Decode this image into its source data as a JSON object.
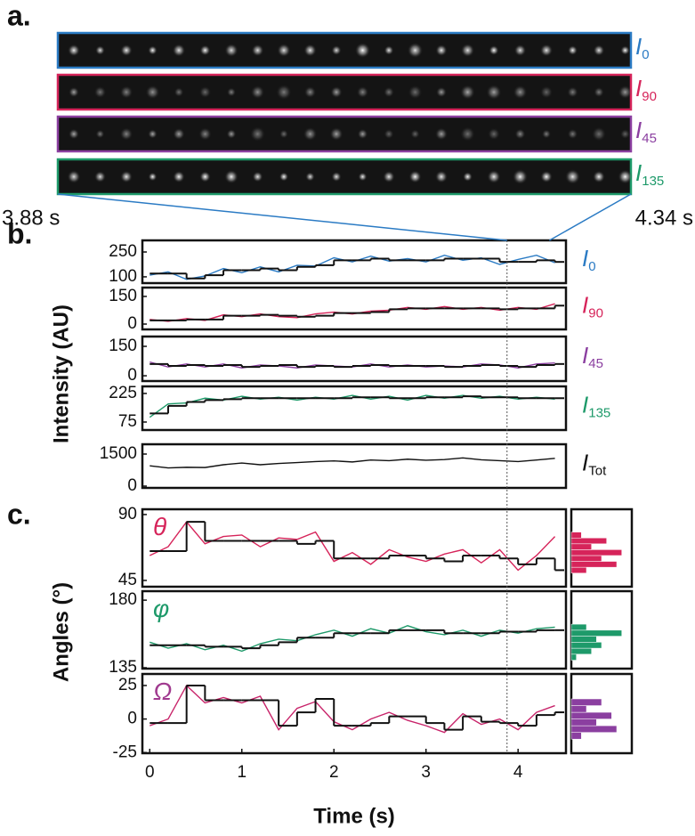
{
  "panel_labels": [
    "a.",
    "b.",
    "c."
  ],
  "intensity_label": "Intensity (AU)",
  "angles_label": "Angles (°)",
  "time_label": "Time (s)",
  "highlight": {
    "start": {
      "value": 3.88,
      "label": "3.88 s"
    },
    "end": {
      "value": 4.34,
      "label": "4.34 s"
    }
  },
  "strips": [
    {
      "label": {
        "main": "I",
        "sub": "0"
      },
      "color": "#2b7bc4"
    },
    {
      "label": {
        "main": "I",
        "sub": "90"
      },
      "color": "#d6245a"
    },
    {
      "label": {
        "main": "I",
        "sub": "45"
      },
      "color": "#8b3fa0"
    },
    {
      "label": {
        "main": "I",
        "sub": "135"
      },
      "color": "#1e9a6a"
    }
  ],
  "chart_data": [
    {
      "type": "line",
      "label": {
        "main": "I",
        "sub": "0"
      },
      "label_color": "#2b7bc4",
      "x": [
        0,
        0.2,
        0.4,
        0.6,
        0.8,
        1,
        1.2,
        1.4,
        1.6,
        1.8,
        2,
        2.2,
        2.4,
        2.6,
        2.8,
        3,
        3.2,
        3.4,
        3.6,
        3.8,
        4,
        4.2,
        4.4
      ],
      "xlim": [
        -0.08,
        4.52
      ],
      "ylim": [
        62,
        320
      ],
      "yticks": [
        100,
        250
      ],
      "series": [
        {
          "color": "#2b7bc4",
          "values": [
            110,
            130,
            85,
            105,
            150,
            125,
            160,
            130,
            170,
            165,
            215,
            190,
            225,
            195,
            210,
            190,
            230,
            200,
            215,
            175,
            205,
            230,
            185
          ]
        },
        {
          "color": "#111111",
          "step": true,
          "values": [
            120,
            120,
            90,
            110,
            140,
            140,
            150,
            140,
            160,
            170,
            200,
            200,
            210,
            200,
            200,
            200,
            210,
            210,
            210,
            190,
            190,
            200,
            190
          ]
        }
      ]
    },
    {
      "type": "line",
      "label": {
        "main": "I",
        "sub": "90"
      },
      "label_color": "#d6245a",
      "x": [
        0,
        0.2,
        0.4,
        0.6,
        0.8,
        1,
        1.2,
        1.4,
        1.6,
        1.8,
        2,
        2.2,
        2.4,
        2.6,
        2.8,
        3,
        3.2,
        3.4,
        3.6,
        3.8,
        4,
        4.2,
        4.4
      ],
      "xlim": [
        -0.08,
        4.52
      ],
      "ylim": [
        -29,
        198
      ],
      "yticks": [
        0,
        150
      ],
      "series": [
        {
          "color": "#d6245a",
          "values": [
            25,
            15,
            30,
            20,
            50,
            40,
            55,
            40,
            35,
            55,
            65,
            55,
            70,
            75,
            90,
            80,
            95,
            80,
            90,
            75,
            90,
            80,
            110
          ]
        },
        {
          "color": "#111111",
          "step": true,
          "values": [
            20,
            20,
            25,
            25,
            45,
            45,
            50,
            45,
            40,
            45,
            60,
            60,
            65,
            80,
            85,
            85,
            85,
            85,
            85,
            80,
            85,
            85,
            100
          ]
        }
      ]
    },
    {
      "type": "line",
      "label": {
        "main": "I",
        "sub": "45"
      },
      "label_color": "#8b3fa0",
      "x": [
        0,
        0.2,
        0.4,
        0.6,
        0.8,
        1,
        1.2,
        1.4,
        1.6,
        1.8,
        2,
        2.2,
        2.4,
        2.6,
        2.8,
        3,
        3.2,
        3.4,
        3.6,
        3.8,
        4,
        4.2,
        4.4
      ],
      "xlim": [
        -0.08,
        4.52
      ],
      "ylim": [
        -27,
        200
      ],
      "yticks": [
        0,
        150
      ],
      "series": [
        {
          "color": "#8b3fa0",
          "values": [
            70,
            45,
            60,
            45,
            60,
            40,
            55,
            50,
            40,
            55,
            50,
            45,
            60,
            45,
            55,
            45,
            50,
            45,
            60,
            55,
            40,
            60,
            65
          ]
        },
        {
          "color": "#111111",
          "step": true,
          "values": [
            60,
            50,
            55,
            50,
            55,
            45,
            50,
            55,
            45,
            50,
            45,
            50,
            55,
            50,
            50,
            50,
            45,
            50,
            55,
            50,
            45,
            55,
            60
          ]
        }
      ]
    },
    {
      "type": "line",
      "label": {
        "main": "I",
        "sub": "135"
      },
      "label_color": "#1e9a6a",
      "x": [
        0,
        0.2,
        0.4,
        0.6,
        0.8,
        1,
        1.2,
        1.4,
        1.6,
        1.8,
        2,
        2.2,
        2.4,
        2.6,
        2.8,
        3,
        3.2,
        3.4,
        3.6,
        3.8,
        4,
        4.2,
        4.4
      ],
      "xlim": [
        -0.08,
        4.52
      ],
      "ylim": [
        33,
        262
      ],
      "yticks": [
        75,
        225
      ],
      "series": [
        {
          "color": "#1e9a6a",
          "values": [
            100,
            170,
            175,
            200,
            190,
            210,
            195,
            205,
            190,
            205,
            195,
            215,
            195,
            210,
            190,
            215,
            200,
            215,
            200,
            210,
            195,
            205,
            195
          ]
        },
        {
          "color": "#111111",
          "step": true,
          "values": [
            120,
            160,
            180,
            190,
            195,
            200,
            200,
            200,
            200,
            200,
            200,
            205,
            205,
            200,
            200,
            205,
            205,
            210,
            205,
            205,
            200,
            200,
            200
          ]
        }
      ]
    },
    {
      "type": "line",
      "label": {
        "main": "I",
        "sub": "Tot"
      },
      "label_color": "#111111",
      "x": [
        0,
        0.2,
        0.4,
        0.6,
        0.8,
        1,
        1.2,
        1.4,
        1.6,
        1.8,
        2,
        2.2,
        2.4,
        2.6,
        2.8,
        3,
        3.2,
        3.4,
        3.6,
        3.8,
        4,
        4.2,
        4.4
      ],
      "xlim": [
        -0.08,
        4.52
      ],
      "ylim": [
        -83,
        1958
      ],
      "yticks": [
        0,
        1500
      ],
      "series": [
        {
          "color": "#111111",
          "values": [
            950,
            850,
            880,
            870,
            1000,
            1080,
            1000,
            1060,
            1100,
            1150,
            1180,
            1130,
            1220,
            1190,
            1260,
            1210,
            1240,
            1320,
            1230,
            1190,
            1150,
            1220,
            1300
          ]
        }
      ]
    },
    {
      "type": "line",
      "label": {
        "main": "θ"
      },
      "label_color": "#d6245a",
      "x": [
        0,
        0.2,
        0.4,
        0.6,
        0.8,
        1,
        1.2,
        1.4,
        1.6,
        1.8,
        2,
        2.2,
        2.4,
        2.6,
        2.8,
        3,
        3.2,
        3.4,
        3.6,
        3.8,
        4,
        4.2,
        4.4
      ],
      "xlim": [
        -0.08,
        4.52
      ],
      "ylim": [
        40.7,
        93.6
      ],
      "yticks": [
        45,
        90
      ],
      "series": [
        {
          "color": "#d6245a",
          "values": [
            62,
            68,
            85,
            70,
            75,
            76,
            68,
            74,
            73,
            78,
            58,
            64,
            56,
            66,
            61,
            58,
            63,
            66,
            57,
            66,
            52,
            62,
            75
          ]
        },
        {
          "color": "#111111",
          "step": true,
          "values": [
            65,
            65,
            85,
            72,
            72,
            72,
            72,
            72,
            70,
            72,
            60,
            60,
            60,
            62,
            62,
            60,
            58,
            62,
            62,
            60,
            56,
            60,
            52
          ]
        }
      ],
      "histogram": {
        "bins": [
          50,
          54,
          58,
          62,
          66,
          70,
          74,
          78
        ],
        "counts": [
          3,
          9,
          6,
          10,
          4,
          7,
          2
        ],
        "color": "#d6245a",
        "xlim": [
          0,
          12
        ]
      }
    },
    {
      "type": "line",
      "label": {
        "main": "φ"
      },
      "label_color": "#1e9a6a",
      "x": [
        0,
        0.2,
        0.4,
        0.6,
        0.8,
        1,
        1.2,
        1.4,
        1.6,
        1.8,
        2,
        2.2,
        2.4,
        2.6,
        2.8,
        3,
        3.2,
        3.4,
        3.6,
        3.8,
        4,
        4.2,
        4.4
      ],
      "xlim": [
        -0.08,
        4.52
      ],
      "ylim": [
        134.4,
        186
      ],
      "yticks": [
        135,
        180
      ],
      "series": [
        {
          "color": "#1e9a6a",
          "values": [
            152,
            148,
            151,
            147,
            150,
            146,
            151,
            154,
            153,
            157,
            160,
            156,
            161,
            158,
            163,
            159,
            157,
            160,
            156,
            160,
            158,
            161,
            162
          ]
        },
        {
          "color": "#111111",
          "step": true,
          "values": [
            150,
            150,
            150,
            149,
            149,
            148,
            150,
            152,
            155,
            155,
            158,
            158,
            158,
            160,
            160,
            160,
            158,
            158,
            158,
            159,
            159,
            160,
            160
          ]
        }
      ],
      "histogram": {
        "bins": [
          140,
          144,
          148,
          152,
          156,
          160,
          164
        ],
        "counts": [
          1,
          4,
          6,
          5,
          10,
          3
        ],
        "color": "#1e9a6a",
        "xlim": [
          0,
          12
        ]
      }
    },
    {
      "type": "line",
      "label": {
        "main": "Ω"
      },
      "label_color": "#a03a8f",
      "x": [
        0,
        0.2,
        0.4,
        0.6,
        0.8,
        1,
        1.2,
        1.4,
        1.6,
        1.8,
        2,
        2.2,
        2.4,
        2.6,
        2.8,
        3,
        3.2,
        3.4,
        3.6,
        3.8,
        4,
        4.2,
        4.4
      ],
      "xlim": [
        -0.08,
        4.52
      ],
      "ylim": [
        -25.5,
        33.6
      ],
      "yticks": [
        -25,
        0,
        25
      ],
      "xticks": [
        0,
        1,
        2,
        3,
        4
      ],
      "series": [
        {
          "color": "#c8246a",
          "values": [
            -5,
            0,
            25,
            12,
            16,
            12,
            17,
            -8,
            8,
            13,
            -2,
            -8,
            0,
            5,
            -1,
            -5,
            -10,
            4,
            -4,
            0,
            -8,
            5,
            10
          ]
        },
        {
          "color": "#111111",
          "step": true,
          "values": [
            -3,
            -3,
            25,
            14,
            14,
            14,
            14,
            -5,
            5,
            15,
            -5,
            -5,
            -3,
            2,
            2,
            -3,
            -8,
            2,
            -2,
            -3,
            -5,
            3,
            5
          ]
        }
      ],
      "histogram": {
        "bins": [
          -15,
          -10,
          -5,
          0,
          5,
          10,
          15
        ],
        "counts": [
          2,
          9,
          5,
          8,
          3,
          6
        ],
        "color": "#8b3fa0",
        "xlim": [
          0,
          12
        ]
      }
    }
  ]
}
